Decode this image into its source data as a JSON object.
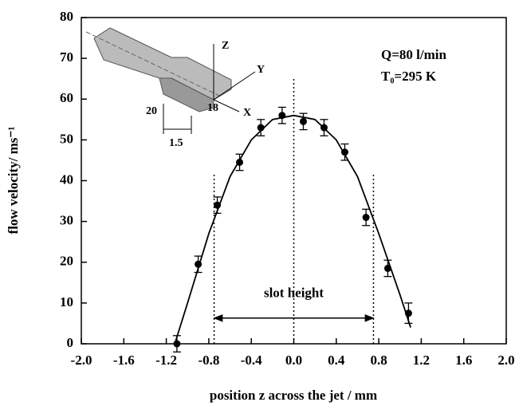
{
  "chart_data": {
    "type": "scatter",
    "xlabel": "position z  across the jet  / mm",
    "ylabel": "flow velocity/ ms⁻¹",
    "xlim": [
      -2.0,
      2.0
    ],
    "ylim": [
      0,
      80
    ],
    "xticks": [
      {
        "value": -2.0,
        "label": "-2.0"
      },
      {
        "value": -1.6,
        "label": "-1.6"
      },
      {
        "value": -1.2,
        "label": "-1.2"
      },
      {
        "value": -0.8,
        "label": "-0.8"
      },
      {
        "value": -0.4,
        "label": "-0.4"
      },
      {
        "value": 0.0,
        "label": "0.0"
      },
      {
        "value": 0.4,
        "label": "0.4"
      },
      {
        "value": 0.8,
        "label": "0.8"
      },
      {
        "value": 1.2,
        "label": "1.2"
      },
      {
        "value": 1.6,
        "label": "1.6"
      },
      {
        "value": 2.0,
        "label": "2.0"
      }
    ],
    "yticks": [
      0,
      10,
      20,
      30,
      40,
      50,
      60,
      70,
      80
    ],
    "color": "#000000",
    "series": [
      {
        "x": [
          -1.1,
          -0.9,
          -0.72,
          -0.51,
          -0.31,
          -0.11,
          0.09,
          0.285,
          0.48,
          0.68,
          0.885,
          1.08
        ],
        "values": [
          0,
          19.5,
          34,
          44.5,
          53,
          56,
          54.5,
          53,
          47,
          31,
          18.5,
          7.5
        ],
        "errors": [
          2,
          2,
          2,
          2,
          2,
          2,
          2,
          2,
          2,
          2,
          2,
          2.5
        ]
      }
    ],
    "fit": {
      "x": [
        -1.12,
        -1.0,
        -0.8,
        -0.6,
        -0.4,
        -0.2,
        0.0,
        0.2,
        0.4,
        0.6,
        0.8,
        1.0,
        1.1
      ],
      "values": [
        0,
        10,
        27,
        41,
        50,
        55,
        56,
        55,
        50,
        41,
        27,
        12,
        4
      ]
    },
    "guides": {
      "x": [
        -0.75,
        0.0,
        0.75
      ],
      "tops": [
        42,
        65,
        42
      ]
    },
    "arrow": {
      "from": -0.75,
      "to": 0.75,
      "y": 6.3,
      "label": "slot height"
    },
    "annotations": [
      "Q=80 l/min",
      "T₀=295 K"
    ],
    "inset_labels": [
      "Z",
      "Y",
      "X",
      "20",
      "18",
      "1.5"
    ]
  }
}
